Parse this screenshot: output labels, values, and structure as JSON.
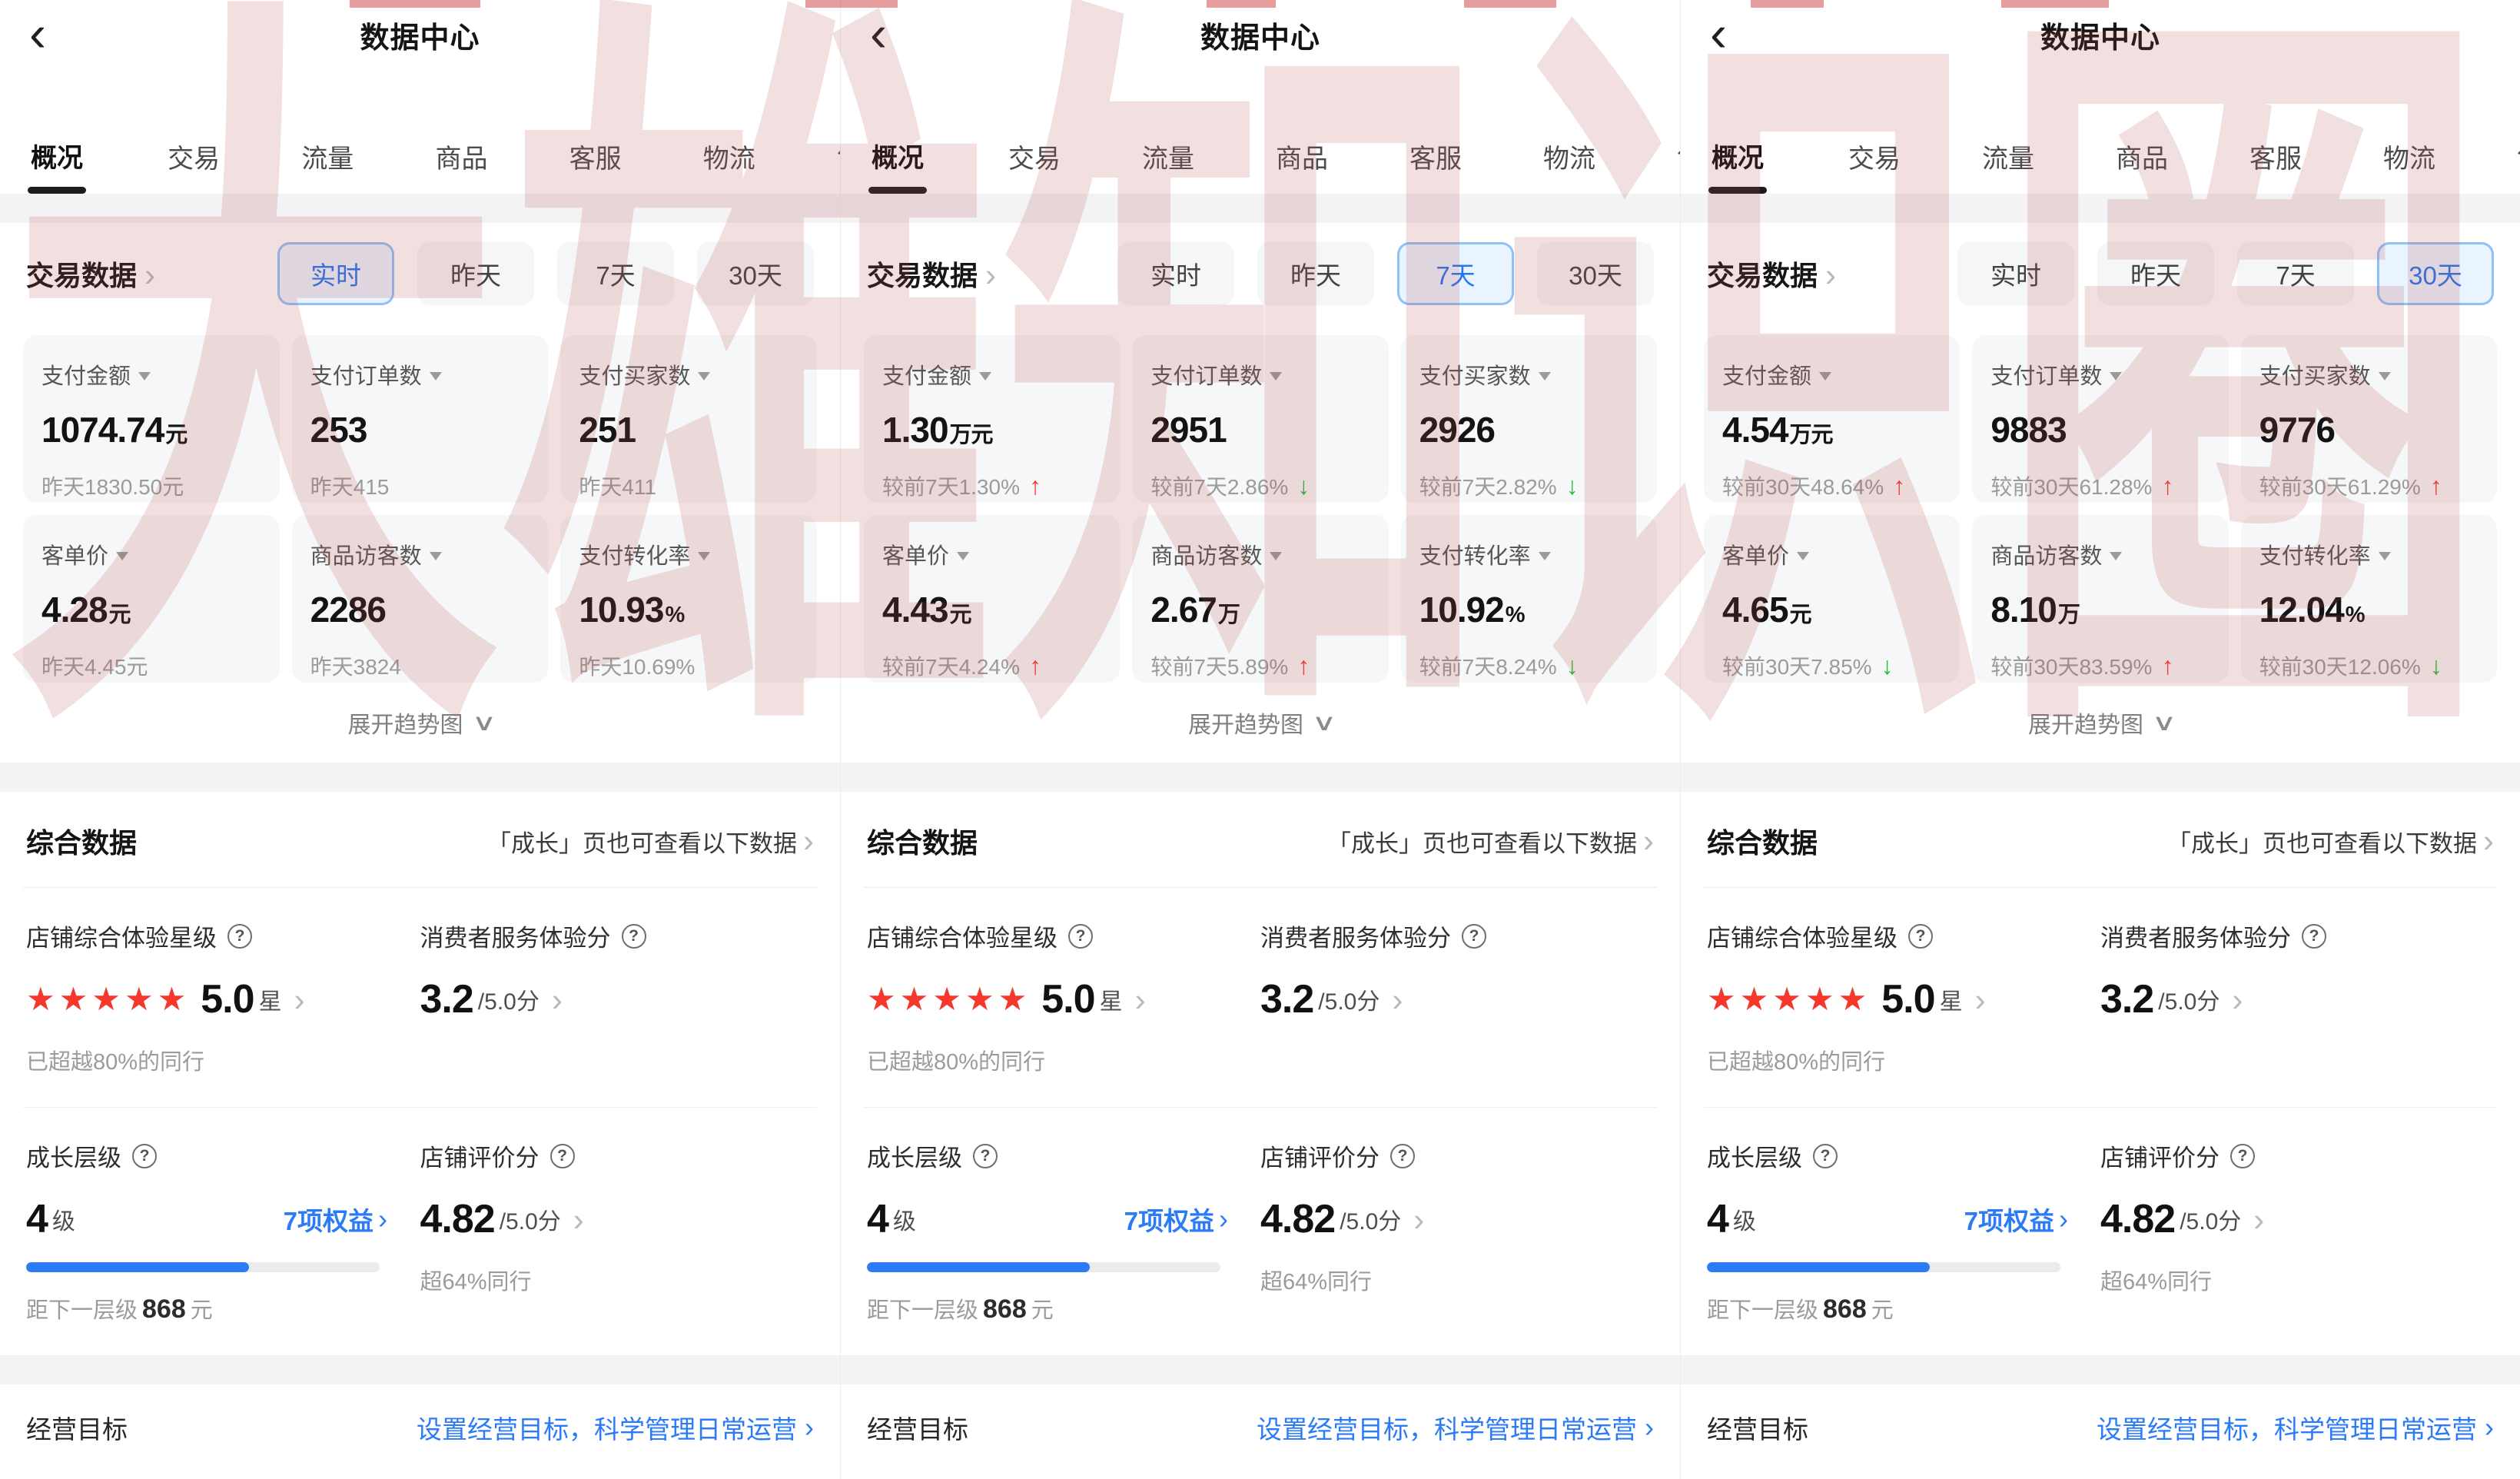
{
  "watermark": {
    "text": "大雄知识圈"
  },
  "header": {
    "title": "数据中心",
    "back_icon": "‹"
  },
  "tabs": [
    "概况",
    "交易",
    "流量",
    "商品",
    "客服",
    "物流",
    "售"
  ],
  "active_tab": "概况",
  "trade_section": {
    "title": "交易数据",
    "expand_label": "展开趋势图"
  },
  "filter_options": [
    "实时",
    "昨天",
    "7天",
    "30天"
  ],
  "panels": [
    {
      "filter": {
        "selected": "实时",
        "selected_index": 0
      },
      "cards": [
        {
          "label": "支付金额",
          "value": "1074.74",
          "unit": "元",
          "sub": "昨天1830.50元",
          "trend": null
        },
        {
          "label": "支付订单数",
          "value": "253",
          "unit": "",
          "sub": "昨天415",
          "trend": null
        },
        {
          "label": "支付买家数",
          "value": "251",
          "unit": "",
          "sub": "昨天411",
          "trend": null
        },
        {
          "label": "客单价",
          "value": "4.28",
          "unit": "元",
          "sub": "昨天4.45元",
          "trend": null
        },
        {
          "label": "商品访客数",
          "value": "2286",
          "unit": "",
          "sub": "昨天3824",
          "trend": null
        },
        {
          "label": "支付转化率",
          "value": "10.93",
          "unit": "%",
          "sub": "昨天10.69%",
          "trend": null
        }
      ]
    },
    {
      "filter": {
        "selected": "7天",
        "selected_index": 2
      },
      "cards": [
        {
          "label": "支付金额",
          "value": "1.30",
          "unit": "万元",
          "sub": "较前7天1.30%",
          "trend": "up"
        },
        {
          "label": "支付订单数",
          "value": "2951",
          "unit": "",
          "sub": "较前7天2.86%",
          "trend": "down"
        },
        {
          "label": "支付买家数",
          "value": "2926",
          "unit": "",
          "sub": "较前7天2.82%",
          "trend": "down"
        },
        {
          "label": "客单价",
          "value": "4.43",
          "unit": "元",
          "sub": "较前7天4.24%",
          "trend": "up"
        },
        {
          "label": "商品访客数",
          "value": "2.67",
          "unit": "万",
          "sub": "较前7天5.89%",
          "trend": "up"
        },
        {
          "label": "支付转化率",
          "value": "10.92",
          "unit": "%",
          "sub": "较前7天8.24%",
          "trend": "down"
        }
      ]
    },
    {
      "filter": {
        "selected": "30天",
        "selected_index": 3
      },
      "cards": [
        {
          "label": "支付金额",
          "value": "4.54",
          "unit": "万元",
          "sub": "较前30天48.64%",
          "trend": "up"
        },
        {
          "label": "支付订单数",
          "value": "9883",
          "unit": "",
          "sub": "较前30天61.28%",
          "trend": "up"
        },
        {
          "label": "支付买家数",
          "value": "9776",
          "unit": "",
          "sub": "较前30天61.29%",
          "trend": "up"
        },
        {
          "label": "客单价",
          "value": "4.65",
          "unit": "元",
          "sub": "较前30天7.85%",
          "trend": "down"
        },
        {
          "label": "商品访客数",
          "value": "8.10",
          "unit": "万",
          "sub": "较前30天83.59%",
          "trend": "up"
        },
        {
          "label": "支付转化率",
          "value": "12.04",
          "unit": "%",
          "sub": "较前30天12.06%",
          "trend": "down"
        }
      ]
    }
  ],
  "composite": {
    "title": "综合数据",
    "link": "「成长」页也可查看以下数据",
    "star_metric": {
      "label": "店铺综合体验星级",
      "stars": 5,
      "value": "5.0",
      "unit": "星",
      "sub": "已超越80%的同行"
    },
    "service_metric": {
      "label": "消费者服务体验分",
      "value": "3.2",
      "denom": "/5.0分"
    },
    "growth_metric": {
      "label": "成长层级",
      "value": "4",
      "unit": "级",
      "link": "7项权益",
      "progress": 63,
      "sub_prefix": "距下一层级",
      "sub_value": "868",
      "sub_unit": "元"
    },
    "rating_metric": {
      "label": "店铺评价分",
      "value": "4.82",
      "denom": "/5.0分",
      "sub": "超64%同行"
    }
  },
  "goal": {
    "label": "经营目标",
    "link": "设置经营目标，科学管理日常运营"
  }
}
